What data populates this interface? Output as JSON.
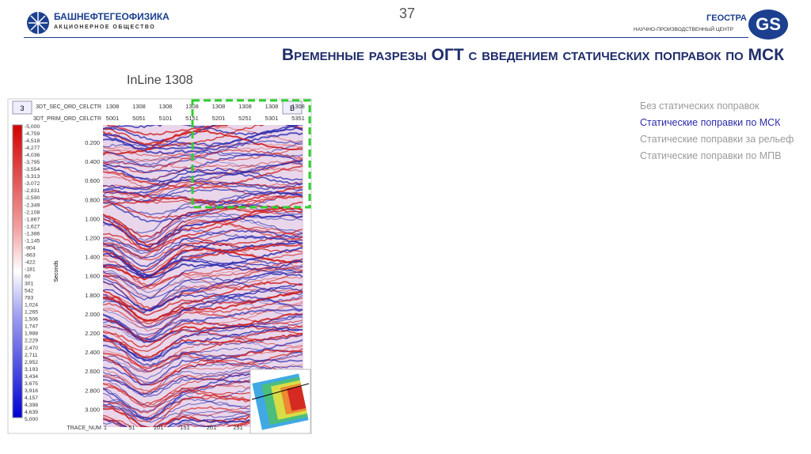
{
  "header": {
    "company": "БАШНЕФТЕГЕОФИЗИКА",
    "company_sub": "АКЦИОНЕРНОЕ ОБЩЕСТВО",
    "page_number": "37",
    "partner": "ГЕОСТРА",
    "partner_sub": "НАУЧНО-ПРОИЗВОДСТВЕННЫЙ ЦЕНТР",
    "partner_logo": "GS"
  },
  "title": "Временные разрезы ОГТ с введением статических поправок по МСК",
  "subtitle": "InLine 1308",
  "panel": {
    "left_tag": "3",
    "right_tag": "B",
    "row1": {
      "label": "3DT_SEC_ORD_CELCTR",
      "values": [
        "1308",
        "1308",
        "1308",
        "1308",
        "1308",
        "1308",
        "1308",
        "1308"
      ]
    },
    "row2": {
      "label": "3DT_PRIM_ORD_CELCTR",
      "values": [
        "5001",
        "5051",
        "5101",
        "5151",
        "5201",
        "5251",
        "5301",
        "5351"
      ]
    },
    "colorbar": [
      "-5,000",
      "-4,759",
      "-4,518",
      "-4,277",
      "-4,036",
      "-3,795",
      "-3,554",
      "-3,313",
      "-3,072",
      "-2,831",
      "-2,590",
      "-2,349",
      "-2,108",
      "-1,867",
      "-1,627",
      "-1,386",
      "-1,145",
      "-904",
      "-663",
      "-422",
      "-181",
      "60",
      "301",
      "542",
      "783",
      "1,024",
      "1,265",
      "1,506",
      "1,747",
      "1,988",
      "2,229",
      "2,470",
      "2,711",
      "2,952",
      "3,193",
      "3,434",
      "3,675",
      "3,916",
      "4,157",
      "4,398",
      "4,639",
      "5,000"
    ],
    "y_axis_label": "Seconds",
    "time_ticks": [
      "0.200",
      "0.400",
      "0.600",
      "0.800",
      "1.000",
      "1.200",
      "1.400",
      "1.600",
      "1.800",
      "2.000",
      "2.200",
      "2.400",
      "2.600",
      "2.800",
      "3.000"
    ],
    "x_axis_label": "TRACE_NUM",
    "trace_ticks": [
      "1",
      "51",
      "101",
      "151",
      "201",
      "251"
    ]
  },
  "options": [
    "Без статических поправок",
    "Статические поправки по МСК",
    "Статические поправки за рельеф",
    "Статические поправки по МПВ"
  ]
}
